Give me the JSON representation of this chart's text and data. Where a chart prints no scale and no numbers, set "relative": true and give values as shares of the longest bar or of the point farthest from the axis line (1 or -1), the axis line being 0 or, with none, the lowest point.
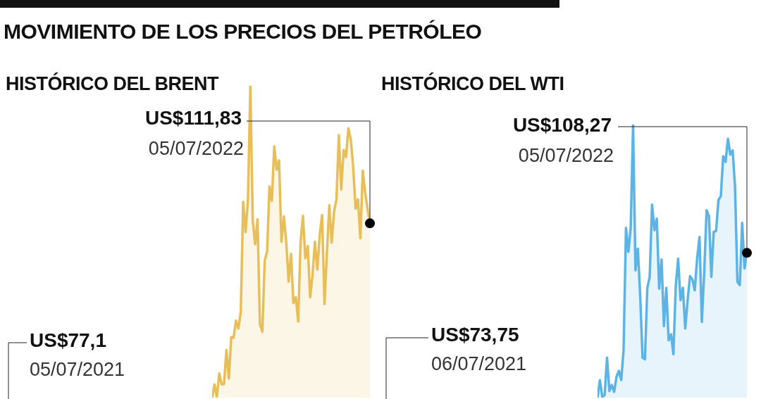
{
  "chart_data": [
    {
      "type": "other",
      "title": "MOVIMIENTO DE LOS PRECIOS DEL PETRÓLEO"
    },
    {
      "type": "area",
      "title": "HISTÓRICO DEL BRENT",
      "relative": true,
      "categories": [
        null,
        null,
        null,
        null,
        null,
        null,
        null,
        null,
        null,
        null,
        null,
        null,
        null,
        null,
        null,
        null,
        null,
        null,
        null,
        null,
        null,
        null,
        null,
        null,
        null,
        null,
        null,
        null,
        null,
        null,
        null,
        null,
        null,
        null,
        null,
        null,
        null,
        null,
        null,
        null,
        null,
        null,
        null,
        null,
        null,
        null,
        null,
        null,
        null,
        null,
        null,
        null,
        null,
        null,
        null,
        null,
        null,
        null,
        null,
        null,
        null,
        null,
        null,
        null,
        null,
        null,
        null
      ],
      "series": [
        {
          "color": "#e8be58",
          "values": [
            0,
            0.042,
            0.003,
            0.078,
            0.042,
            0.044,
            0.153,
            0.061,
            0.194,
            0.192,
            0.247,
            0.222,
            0.275,
            0.628,
            0.531,
            0.636,
            1,
            0.569,
            0.492,
            0.572,
            0.236,
            0.211,
            0.439,
            0.469,
            0.678,
            0.631,
            0.806,
            0.731,
            0.761,
            0.5,
            0.581,
            0.5,
            0.372,
            0.461,
            0.303,
            0.322,
            0.244,
            0.5,
            0.583,
            0.447,
            0.486,
            0.322,
            0.392,
            0.5,
            0.411,
            0.522,
            0.586,
            0.3,
            0.461,
            0.617,
            0.497,
            0.597,
            0.636,
            0.842,
            0.667,
            0.794,
            0.772,
            0.864,
            0.828,
            0.742,
            0.606,
            0.636,
            0.511,
            0.728,
            0.658,
            0.606,
            0.559
          ]
        }
      ],
      "annotations": [
        "US$111,83",
        "05/07/2022",
        "US$77,1",
        "05/07/2021"
      ]
    },
    {
      "type": "area",
      "title": "HISTÓRICO DEL WTI",
      "relative": true,
      "categories": [
        null,
        null,
        null,
        null,
        null,
        null,
        null,
        null,
        null,
        null,
        null,
        null,
        null,
        null,
        null,
        null,
        null,
        null,
        null,
        null,
        null,
        null,
        null,
        null,
        null,
        null,
        null,
        null,
        null,
        null,
        null,
        null,
        null,
        null,
        null,
        null,
        null,
        null,
        null,
        null,
        null,
        null,
        null,
        null,
        null,
        null,
        null,
        null,
        null,
        null,
        null,
        null,
        null,
        null,
        null,
        null,
        null,
        null,
        null,
        null,
        null,
        null,
        null,
        null
      ],
      "series": [
        {
          "color": "#5bb4e5",
          "values": [
            0,
            0.064,
            0.003,
            0.009,
            0.146,
            0.024,
            0.046,
            0.021,
            0.076,
            0.098,
            0.064,
            0.177,
            0.622,
            0.534,
            0.622,
            1,
            0.466,
            0.546,
            0.372,
            0.146,
            0.14,
            0.402,
            0.442,
            0.707,
            0.613,
            0.655,
            0.399,
            0.506,
            0.262,
            0.402,
            0.21,
            0.232,
            0.159,
            0.409,
            0.509,
            0.357,
            0.402,
            0.253,
            0.357,
            0.445,
            0.433,
            0.393,
            0.509,
            0.588,
            0.277,
            0.46,
            0.686,
            0.665,
            0.442,
            0.607,
            0.61,
            0.723,
            0.738,
            0.884,
            0.863,
            0.948,
            0.89,
            0.905,
            0.771,
            0.424,
            0.412,
            0.64,
            0.473,
            0.53
          ]
        }
      ],
      "annotations": [
        "US$108,27",
        "05/07/2022",
        "US$73,75",
        "06/07/2021"
      ]
    }
  ]
}
